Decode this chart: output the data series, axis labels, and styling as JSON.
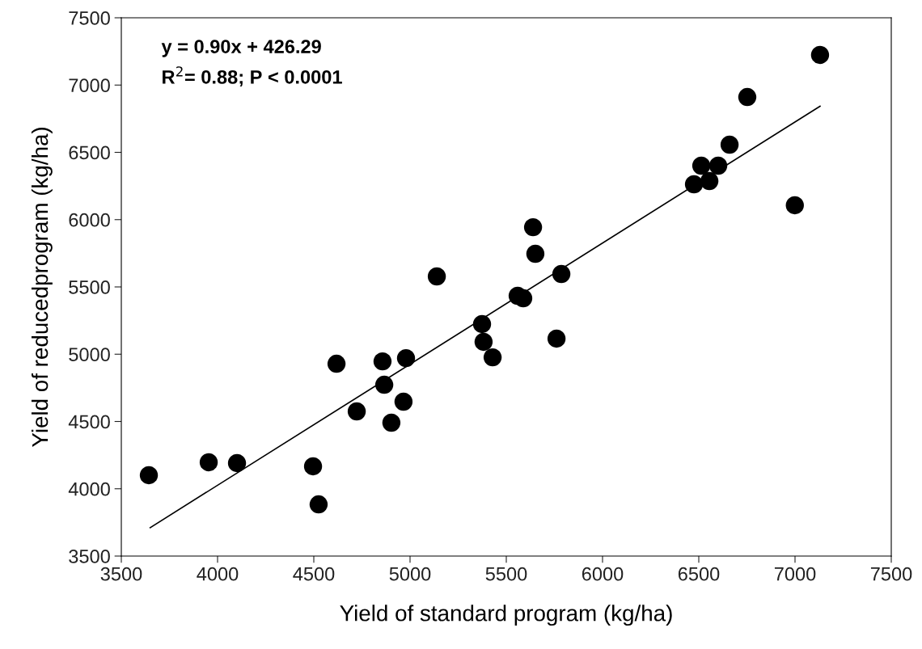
{
  "chart_data": {
    "type": "scatter",
    "xlabel": "Yield of standard program (kg/ha)",
    "ylabel": "Yield of reducedprogram (kg/ha)",
    "annotations": [
      "y = 0.90x + 426.29",
      "R$^{2}$= 0.88; P < 0.0001"
    ],
    "xlim": [
      3500,
      7500
    ],
    "xticks": [
      3500,
      4000,
      4500,
      5000,
      5500,
      6000,
      6500,
      7000,
      7500
    ],
    "ylim": [
      3500,
      7500
    ],
    "yticks": [
      3500,
      4000,
      4500,
      5000,
      5500,
      6000,
      6500,
      7000,
      7500
    ],
    "grid": false,
    "legend": false,
    "marker": "circle",
    "series": [
      {
        "color": "#000000",
        "x": [
          3643,
          3954,
          4101,
          4496,
          4525,
          4618,
          4857,
          4979,
          4866,
          4723,
          4966,
          4903,
          5374,
          5382,
          5429,
          5639,
          5651,
          5139,
          5786,
          5559,
          5588,
          5761,
          6660,
          6513,
          6601,
          6475,
          6555,
          6999,
          6752,
          7130
        ],
        "values": [
          4101,
          4197,
          4191,
          4167,
          3884,
          4929,
          4947,
          4971,
          4773,
          4575,
          4647,
          4491,
          5224,
          5092,
          4977,
          5944,
          5746,
          5578,
          5596,
          5434,
          5416,
          5116,
          6557,
          6401,
          6401,
          6263,
          6287,
          6107,
          6911,
          7224
        ]
      },
      {
        "type": "line",
        "color": "#000000",
        "line_style": "solid",
        "marker": "none",
        "x": [
          3650,
          7130
        ],
        "values": [
          3711,
          6843
        ]
      }
    ]
  }
}
